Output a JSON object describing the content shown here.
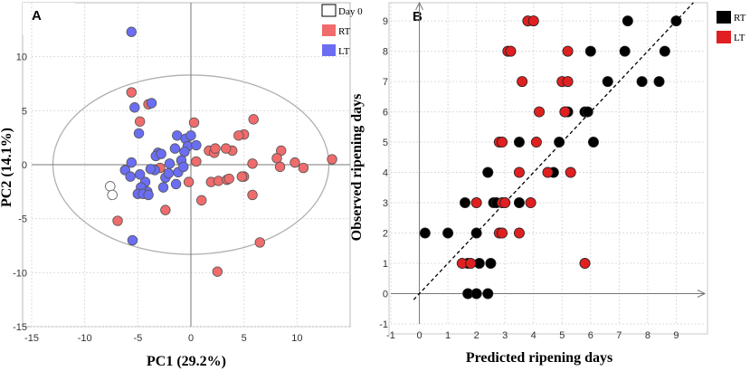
{
  "chart_data": [
    {
      "panel": "A",
      "type": "scatter",
      "xlabel": "PC1 (29.2%)",
      "ylabel": "PC2 (14.1%)",
      "xlim": [
        -15,
        15
      ],
      "ylim": [
        -15,
        15
      ],
      "xticks": [
        -15,
        -10,
        -5,
        0,
        5,
        10
      ],
      "yticks": [
        -15,
        -10,
        -5,
        0,
        5,
        10
      ],
      "grid": true,
      "ellipse": {
        "cx": 0,
        "cy": 0,
        "rx": 13,
        "ry": 8.3
      },
      "legend_position": "top-right",
      "series": [
        {
          "name": "Day 0",
          "color": "#ffffff",
          "points": [
            [
              -7.6,
              -2.0
            ],
            [
              -7.4,
              -2.8
            ]
          ]
        },
        {
          "name": "RT",
          "color": "#f06b6b",
          "points": [
            [
              -5.6,
              6.7
            ],
            [
              -4.0,
              5.6
            ],
            [
              -4.8,
              4.0
            ],
            [
              -2.9,
              -0.3
            ],
            [
              -2.4,
              -4.2
            ],
            [
              -6.9,
              -5.2
            ],
            [
              0.3,
              3.9
            ],
            [
              0.5,
              0.3
            ],
            [
              -0.2,
              -1.6
            ],
            [
              1.7,
              1.3
            ],
            [
              2.2,
              1.1
            ],
            [
              3.9,
              1.3
            ],
            [
              2.3,
              1.5
            ],
            [
              3.3,
              1.5
            ],
            [
              1.9,
              -1.6
            ],
            [
              2.6,
              -1.5
            ],
            [
              3.4,
              -1.4
            ],
            [
              5.0,
              2.8
            ],
            [
              4.5,
              2.7
            ],
            [
              5.9,
              4.2
            ],
            [
              5.0,
              -1.1
            ],
            [
              5.8,
              0.1
            ],
            [
              5.8,
              -2.8
            ],
            [
              4.8,
              -1.1
            ],
            [
              3.6,
              -1.3
            ],
            [
              1.0,
              -3.3
            ],
            [
              6.5,
              -7.2
            ],
            [
              8.5,
              1.3
            ],
            [
              8.1,
              0.6
            ],
            [
              9.8,
              0.2
            ],
            [
              10.6,
              -0.3
            ],
            [
              8.4,
              -0.2
            ],
            [
              13.3,
              0.5
            ],
            [
              2.5,
              -9.9
            ]
          ]
        },
        {
          "name": "LT",
          "color": "#6b6ef2",
          "points": [
            [
              -5.6,
              12.3
            ],
            [
              -5.3,
              5.3
            ],
            [
              -3.7,
              5.7
            ],
            [
              -4.9,
              2.9
            ],
            [
              -3.1,
              1.1
            ],
            [
              -3.3,
              0.8
            ],
            [
              -2.8,
              1.0
            ],
            [
              -1.3,
              2.7
            ],
            [
              -0.5,
              2.4
            ],
            [
              0.0,
              2.7
            ],
            [
              -0.3,
              1.7
            ],
            [
              0.5,
              1.8
            ],
            [
              -1.5,
              1.5
            ],
            [
              -0.6,
              1.2
            ],
            [
              -0.9,
              0.4
            ],
            [
              -2.0,
              0.1
            ],
            [
              -3.4,
              -0.5
            ],
            [
              -3.8,
              -0.4
            ],
            [
              -2.4,
              -1.2
            ],
            [
              -2.1,
              -0.8
            ],
            [
              -1.2,
              -0.7
            ],
            [
              -0.7,
              -0.2
            ],
            [
              -1.4,
              -1.8
            ],
            [
              -2.6,
              -2.1
            ],
            [
              -4.1,
              -2.5
            ],
            [
              -4.3,
              -1.6
            ],
            [
              -4.7,
              -2.1
            ],
            [
              -5.0,
              -2.7
            ],
            [
              -4.5,
              -2.7
            ],
            [
              -4.0,
              -2.8
            ],
            [
              -5.6,
              0.2
            ],
            [
              -6.2,
              -0.5
            ],
            [
              -5.7,
              -1.1
            ],
            [
              -4.8,
              -0.9
            ],
            [
              -5.5,
              -7.0
            ]
          ]
        }
      ]
    },
    {
      "panel": "B",
      "type": "scatter",
      "xlabel": "Predicted ripening days",
      "ylabel": "Observed ripening days",
      "xlim": [
        -1,
        10
      ],
      "ylim": [
        -1,
        9.6
      ],
      "xticks": [
        -1,
        0,
        1,
        2,
        3,
        4,
        5,
        6,
        7,
        8,
        9
      ],
      "yticks": [
        -1,
        0,
        1,
        2,
        3,
        4,
        5,
        6,
        7,
        8,
        9
      ],
      "grid": true,
      "reference_line": "y = x",
      "legend_position": "top-right",
      "series": [
        {
          "name": "RT",
          "color": "#000000",
          "points": [
            [
              0.2,
              2
            ],
            [
              1.0,
              2
            ],
            [
              2.0,
              2
            ],
            [
              2.5,
              1
            ],
            [
              2.6,
              3
            ],
            [
              2.4,
              4
            ],
            [
              2.7,
              3
            ],
            [
              3.5,
              5
            ],
            [
              3.5,
              3
            ],
            [
              4.7,
              4
            ],
            [
              4.9,
              5
            ],
            [
              5.1,
              6
            ],
            [
              5.2,
              6
            ],
            [
              5.8,
              6
            ],
            [
              5.9,
              6
            ],
            [
              6.1,
              5
            ],
            [
              6.0,
              8
            ],
            [
              6.6,
              7
            ],
            [
              7.2,
              8
            ],
            [
              7.3,
              9
            ],
            [
              7.8,
              7
            ],
            [
              8.4,
              7
            ],
            [
              8.6,
              8
            ],
            [
              9.0,
              9
            ],
            [
              1.6,
              3
            ],
            [
              1.7,
              0
            ],
            [
              2.0,
              0
            ],
            [
              2.4,
              0
            ],
            [
              2.1,
              1
            ],
            [
              1.7,
              1
            ]
          ]
        },
        {
          "name": "LT",
          "color": "#e02020",
          "points": [
            [
              1.5,
              1
            ],
            [
              1.8,
              1
            ],
            [
              2.0,
              3
            ],
            [
              2.8,
              2
            ],
            [
              2.9,
              2
            ],
            [
              2.8,
              5
            ],
            [
              2.9,
              5
            ],
            [
              2.9,
              3
            ],
            [
              3.0,
              3
            ],
            [
              3.5,
              2
            ],
            [
              3.5,
              4
            ],
            [
              3.6,
              7
            ],
            [
              3.9,
              3
            ],
            [
              4.1,
              5
            ],
            [
              4.2,
              6
            ],
            [
              4.5,
              4
            ],
            [
              5.0,
              7
            ],
            [
              5.1,
              6
            ],
            [
              5.2,
              7
            ],
            [
              5.2,
              8
            ],
            [
              5.3,
              4
            ],
            [
              5.8,
              1
            ],
            [
              3.1,
              8
            ],
            [
              3.2,
              8
            ],
            [
              3.8,
              9
            ],
            [
              4.0,
              9
            ]
          ]
        }
      ]
    }
  ]
}
